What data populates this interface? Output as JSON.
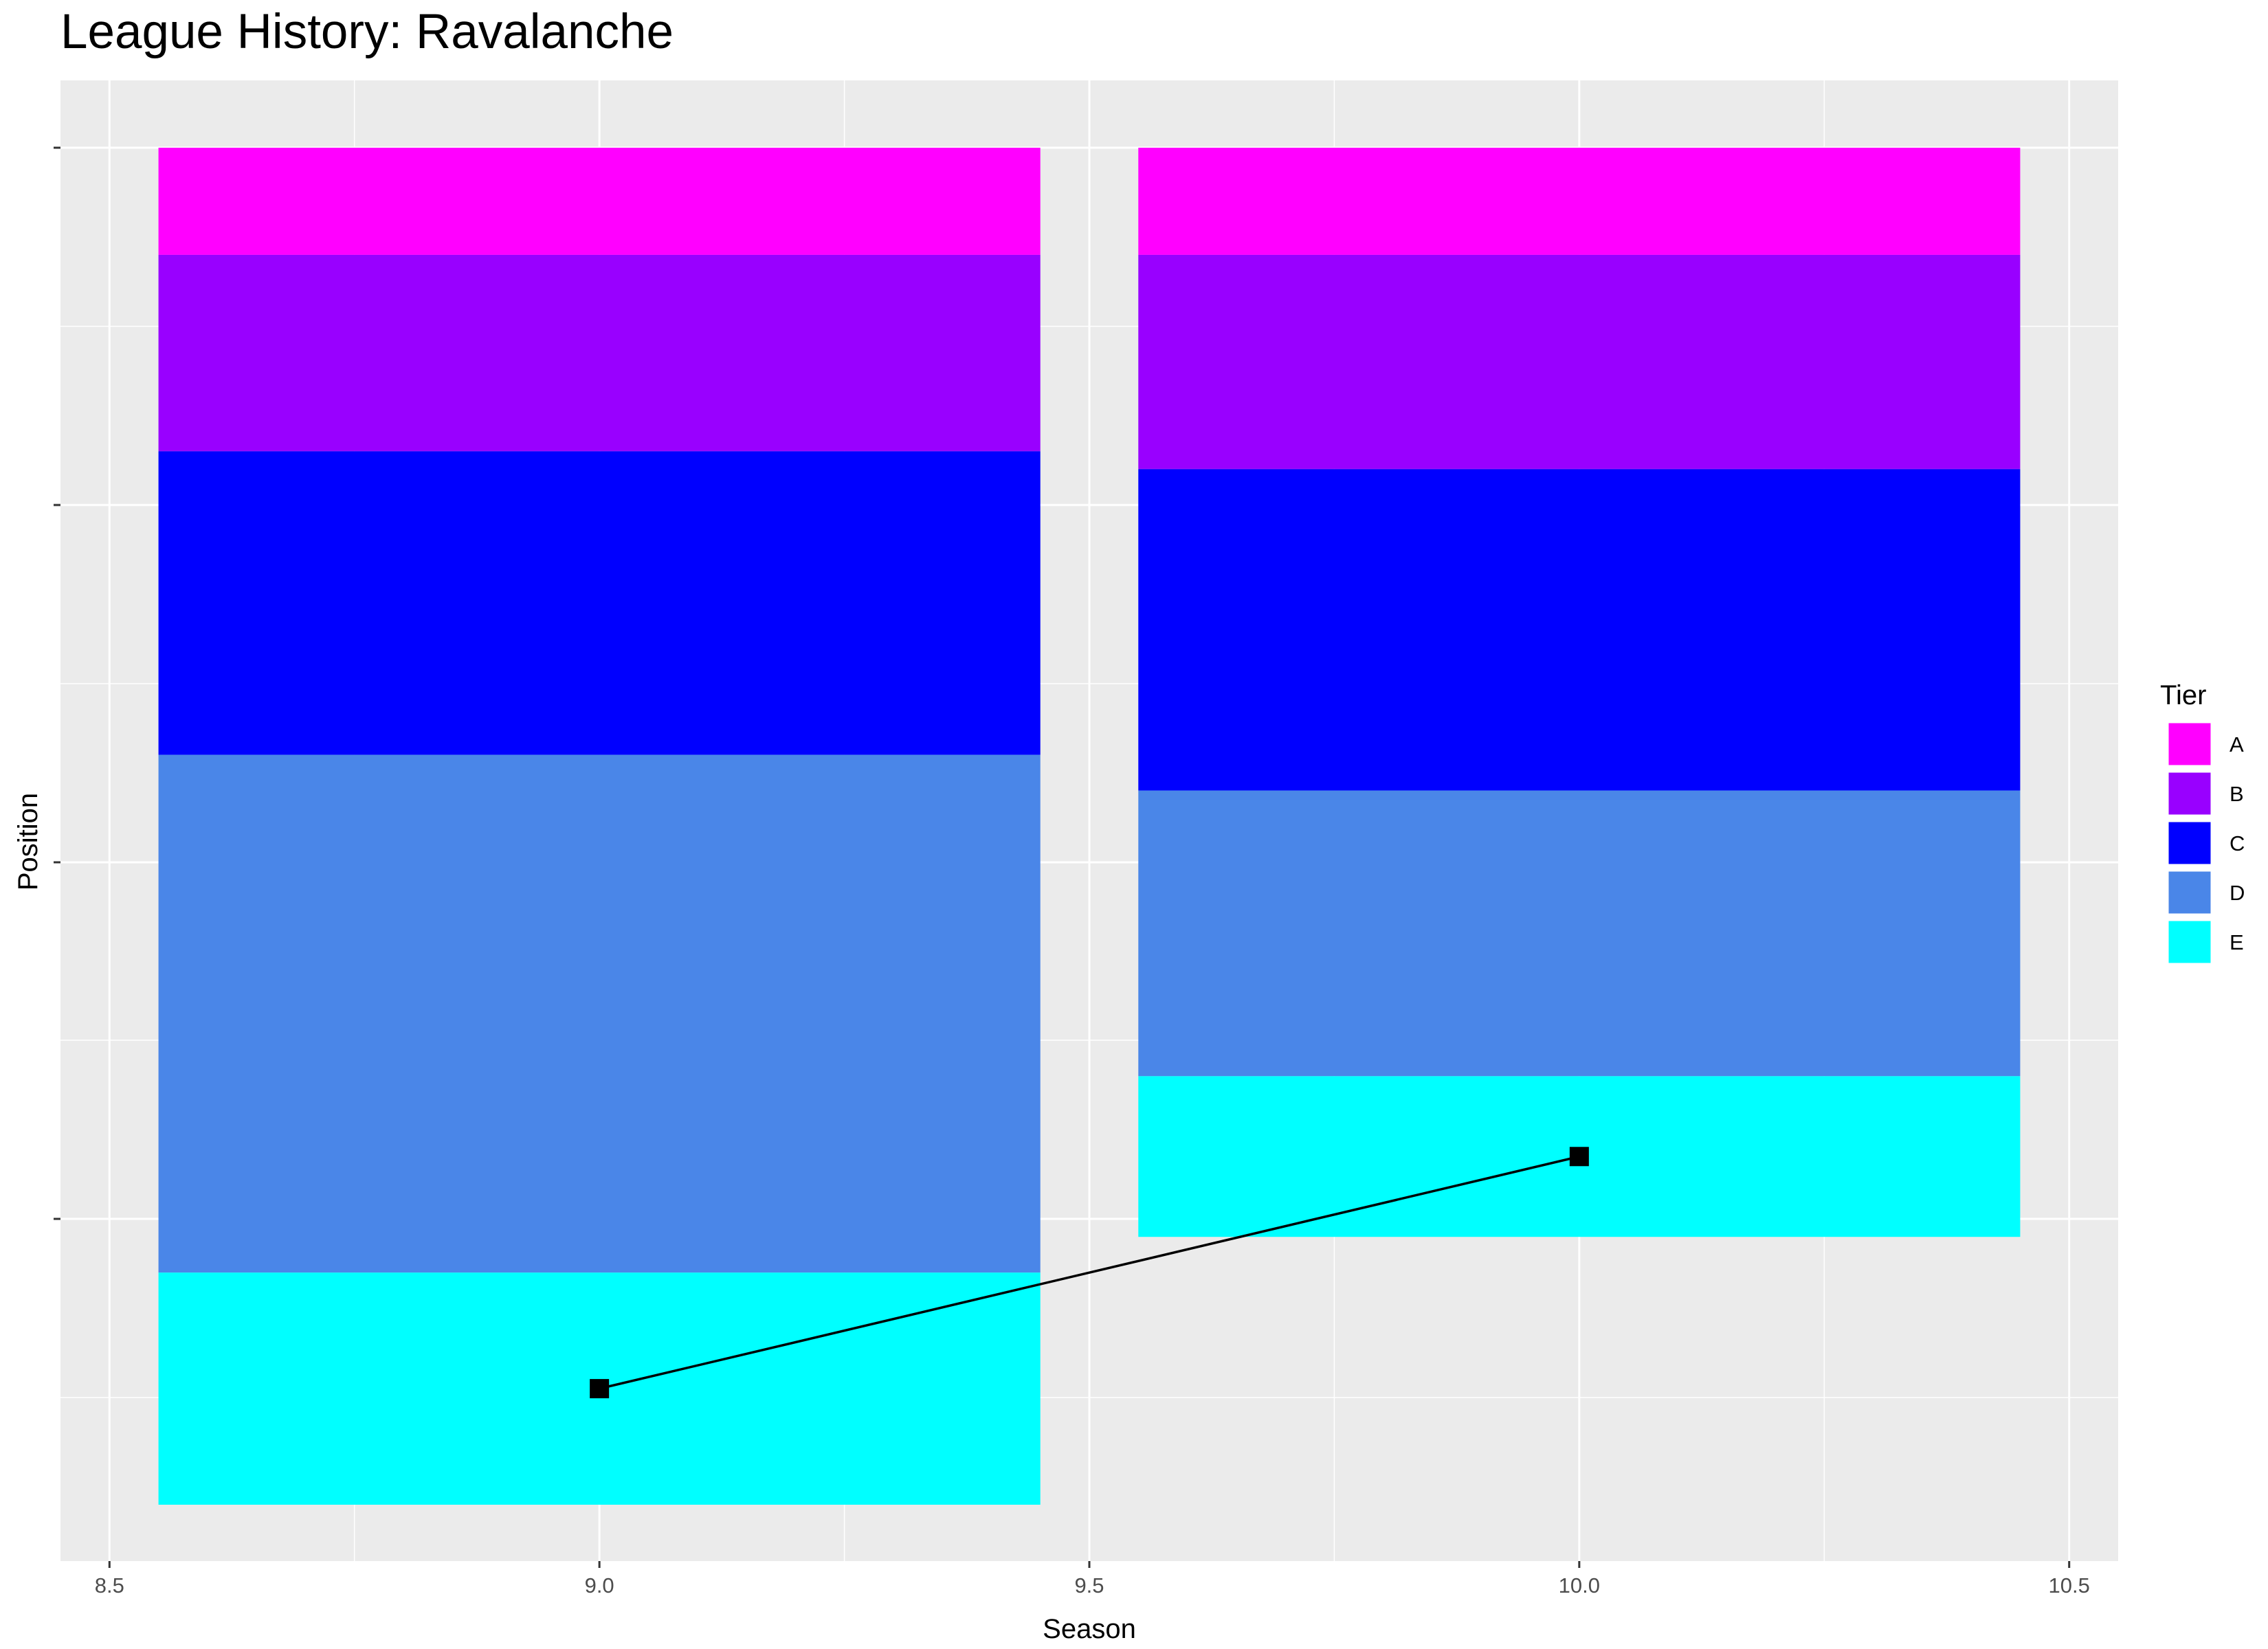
{
  "chart_data": {
    "type": "bar",
    "title": "League History: Ravalanche",
    "xlabel": "Season",
    "ylabel": "Position",
    "xlim": [
      8.45,
      10.55
    ],
    "x_ticks": [
      "8.5",
      "9.0",
      "9.5",
      "10.0",
      "10.5"
    ],
    "y_tick_labels_shown": false,
    "grid": true,
    "legend": {
      "title": "Tier",
      "position": "right",
      "entries": [
        {
          "label": "A",
          "color": "#FF00FF"
        },
        {
          "label": "B",
          "color": "#9900FF"
        },
        {
          "label": "C",
          "color": "#0000FF"
        },
        {
          "label": "D",
          "color": "#4A86E8"
        },
        {
          "label": "E",
          "color": "#00FFFF"
        }
      ]
    },
    "stacked_bars": [
      {
        "season": 9,
        "segments": [
          {
            "tier": "A",
            "size": 6
          },
          {
            "tier": "B",
            "size": 11
          },
          {
            "tier": "C",
            "size": 17
          },
          {
            "tier": "D",
            "size": 29
          },
          {
            "tier": "E",
            "size": 13
          }
        ]
      },
      {
        "season": 10,
        "segments": [
          {
            "tier": "A",
            "size": 6
          },
          {
            "tier": "B",
            "size": 12
          },
          {
            "tier": "C",
            "size": 18
          },
          {
            "tier": "D",
            "size": 16
          },
          {
            "tier": "E",
            "size": 9
          }
        ]
      }
    ],
    "position_series": [
      {
        "season": 9,
        "position": 69.5
      },
      {
        "season": 10,
        "position": 56.5
      }
    ]
  }
}
